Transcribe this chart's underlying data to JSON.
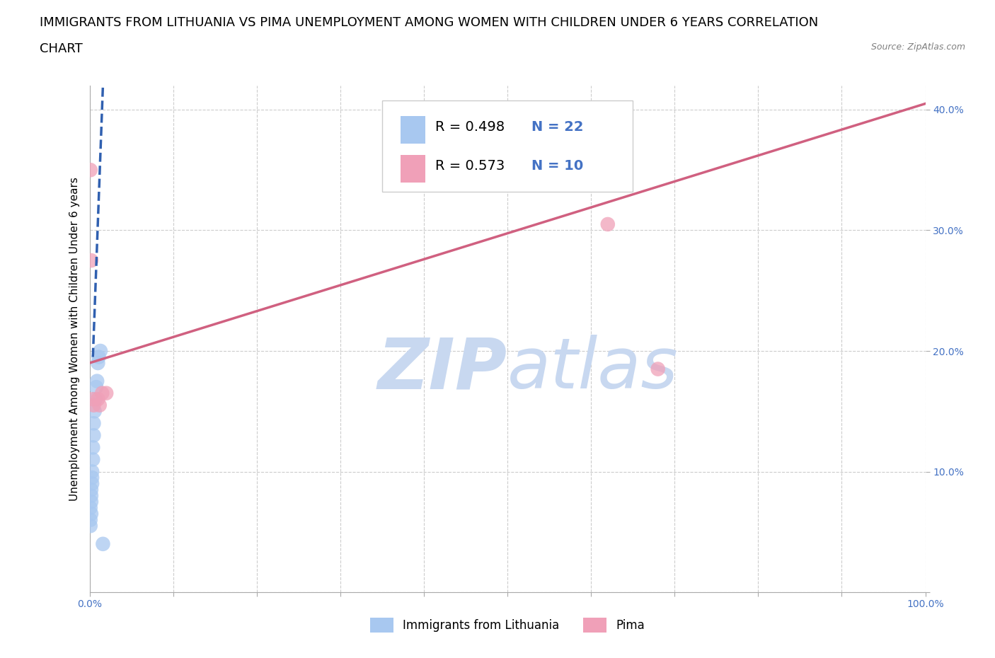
{
  "title_line1": "IMMIGRANTS FROM LITHUANIA VS PIMA UNEMPLOYMENT AMONG WOMEN WITH CHILDREN UNDER 6 YEARS CORRELATION",
  "title_line2": "CHART",
  "source": "Source: ZipAtlas.com",
  "ylabel": "Unemployment Among Women with Children Under 6 years",
  "xlim": [
    0,
    1.0
  ],
  "ylim": [
    0,
    0.42
  ],
  "xticks": [
    0,
    0.1,
    0.2,
    0.3,
    0.4,
    0.5,
    0.6,
    0.7,
    0.8,
    0.9,
    1.0
  ],
  "xticklabels": [
    "0.0%",
    "",
    "",
    "",
    "",
    "",
    "",
    "",
    "",
    "",
    "100.0%"
  ],
  "yticks": [
    0.0,
    0.1,
    0.2,
    0.3,
    0.4
  ],
  "yticklabels": [
    "",
    "10.0%",
    "20.0%",
    "30.0%",
    "40.0%"
  ],
  "blue_scatter_x": [
    0.001,
    0.001,
    0.001,
    0.002,
    0.002,
    0.002,
    0.002,
    0.003,
    0.003,
    0.003,
    0.004,
    0.004,
    0.005,
    0.005,
    0.006,
    0.007,
    0.008,
    0.009,
    0.01,
    0.011,
    0.013,
    0.016
  ],
  "blue_scatter_y": [
    0.055,
    0.06,
    0.07,
    0.065,
    0.075,
    0.08,
    0.085,
    0.09,
    0.095,
    0.1,
    0.11,
    0.12,
    0.13,
    0.14,
    0.15,
    0.16,
    0.17,
    0.175,
    0.19,
    0.195,
    0.2,
    0.04
  ],
  "pink_scatter_x": [
    0.001,
    0.002,
    0.004,
    0.005,
    0.01,
    0.012,
    0.015,
    0.02,
    0.62,
    0.68
  ],
  "pink_scatter_y": [
    0.35,
    0.275,
    0.16,
    0.155,
    0.16,
    0.155,
    0.165,
    0.165,
    0.305,
    0.185
  ],
  "blue_line_x1": 0.004,
  "blue_line_y1": 0.195,
  "blue_line_x2": 0.016,
  "blue_line_y2": 0.42,
  "pink_line_x1": 0.0,
  "pink_line_y1": 0.19,
  "pink_line_x2": 1.0,
  "pink_line_y2": 0.405,
  "blue_color": "#a8c8f0",
  "pink_color": "#f0a0b8",
  "blue_line_color": "#3060b0",
  "pink_line_color": "#d06080",
  "watermark_zip_color": "#c8d8f0",
  "watermark_atlas_color": "#c8d8f0",
  "legend_R1": "R = 0.498",
  "legend_N1": "N = 22",
  "legend_R2": "R = 0.573",
  "legend_N2": "N = 10",
  "legend_label1": "Immigrants from Lithuania",
  "legend_label2": "Pima",
  "title_fontsize": 13,
  "axis_label_fontsize": 11,
  "tick_fontsize": 10,
  "rn_fontsize": 14
}
